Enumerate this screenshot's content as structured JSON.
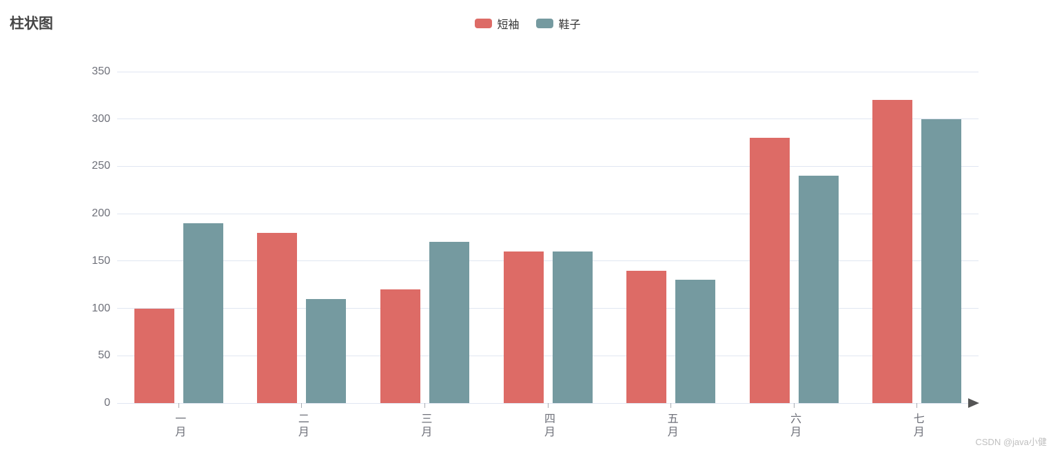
{
  "title": "柱状图",
  "watermark": "CSDN @java小健",
  "legend": [
    {
      "label": "短袖",
      "color": "#dd6b66"
    },
    {
      "label": "鞋子",
      "color": "#759aa0"
    }
  ],
  "chart_data": {
    "type": "bar",
    "title": "柱状图",
    "categories": [
      "一月",
      "二月",
      "三月",
      "四月",
      "五月",
      "六月",
      "七月"
    ],
    "series": [
      {
        "name": "短袖",
        "color": "#dd6b66",
        "values": [
          100,
          180,
          120,
          160,
          140,
          280,
          320
        ]
      },
      {
        "name": "鞋子",
        "color": "#759aa0",
        "values": [
          190,
          110,
          170,
          160,
          130,
          240,
          300
        ]
      }
    ],
    "xlabel": "",
    "ylabel": "",
    "ylim": [
      0,
      350
    ],
    "ytick_interval": 50,
    "grid": true,
    "legend_position": "top-center"
  }
}
